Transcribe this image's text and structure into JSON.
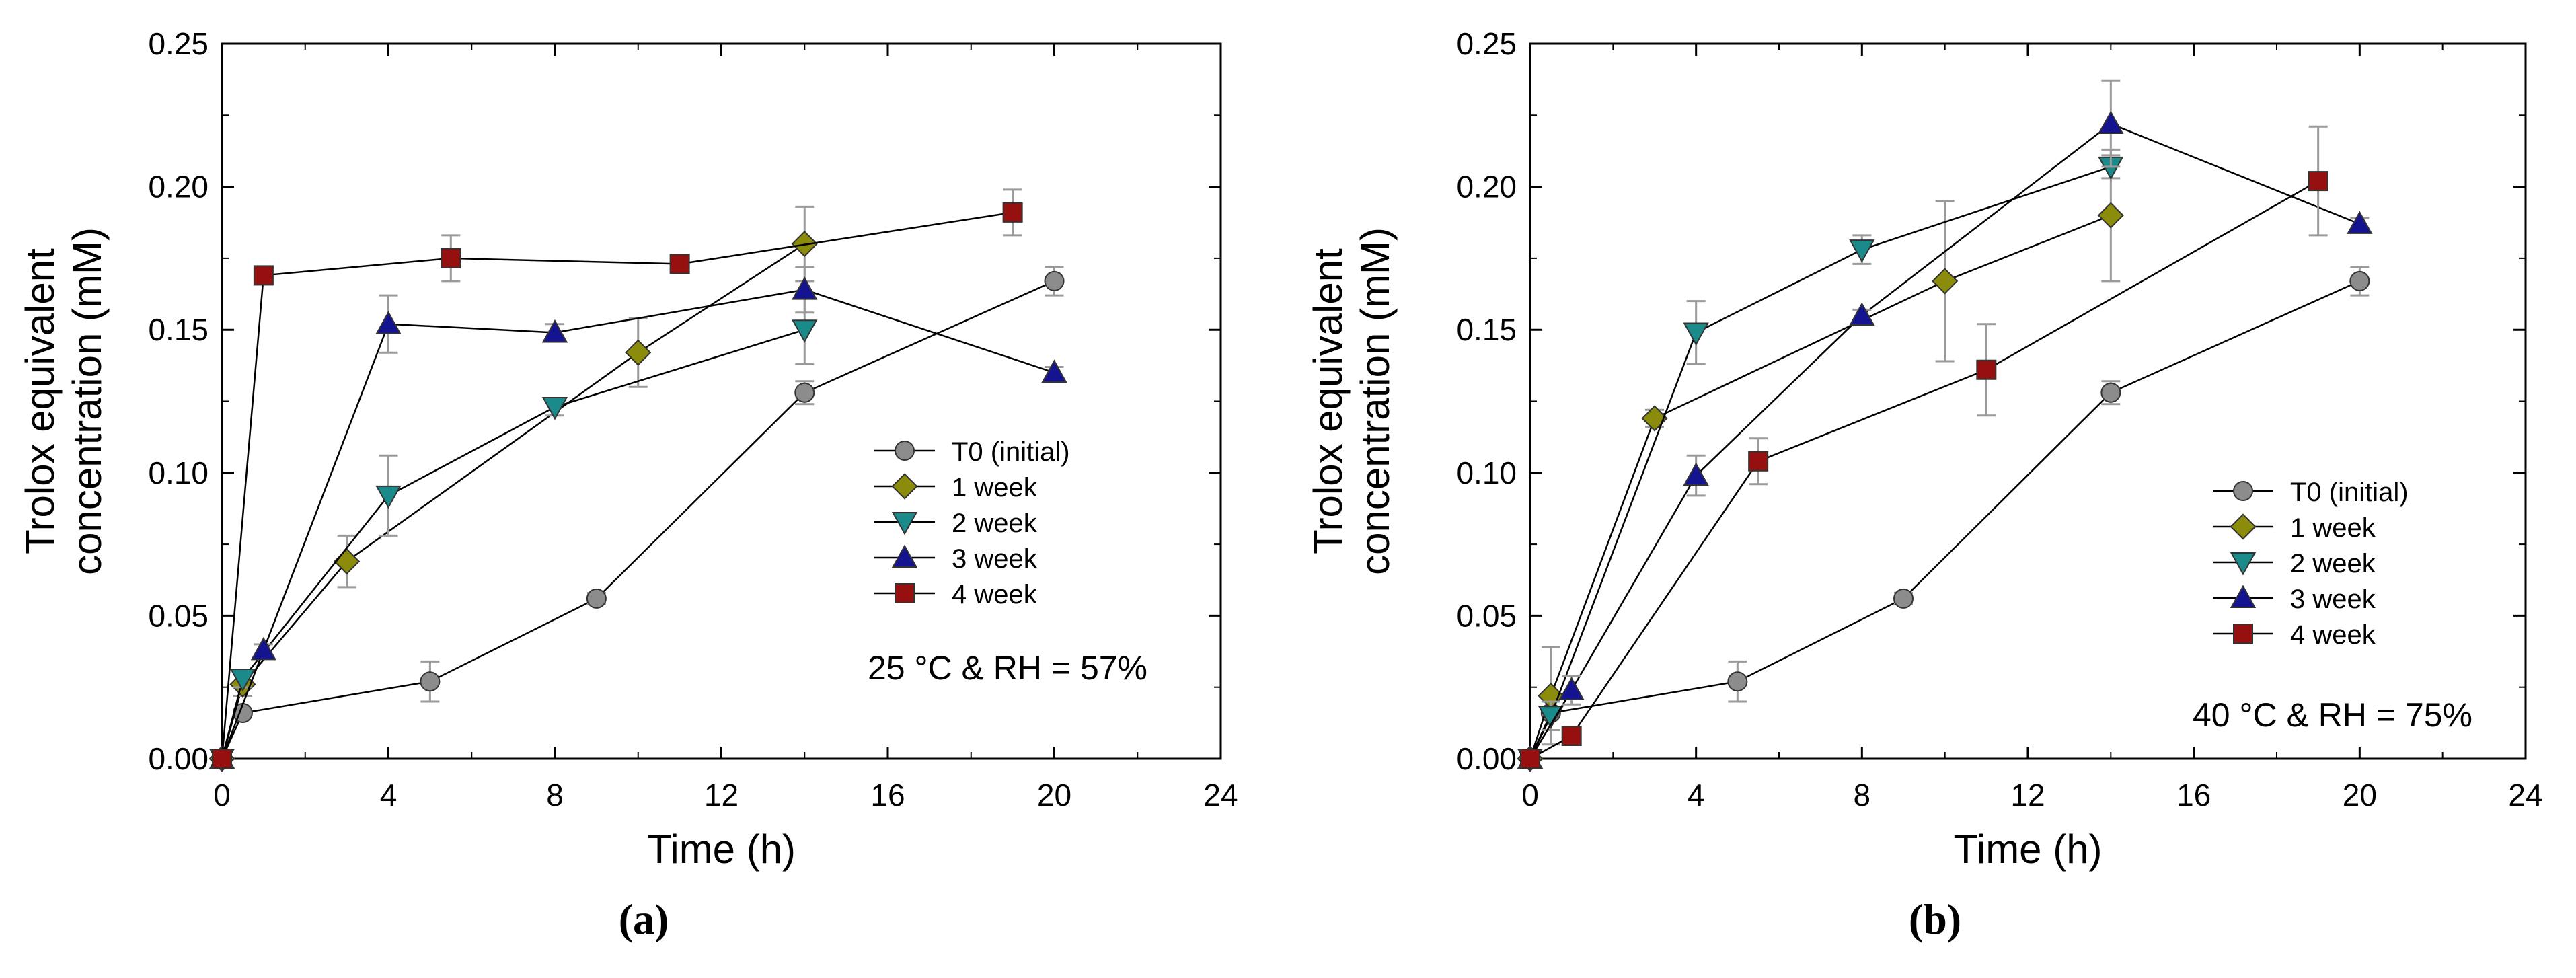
{
  "colors": {
    "T0 (initial)": "#8c8c8c",
    "1 week": "#8c8c0c",
    "2 week": "#1a8a8a",
    "3 week": "#141490",
    "4 week": "#961010",
    "error_bar": "#9a9a9a",
    "line": "#000000"
  },
  "chart_data": [
    {
      "type": "line",
      "panel_label": "(a)",
      "annotation": "25 °C & RH = 57%",
      "xlabel": "Time (h)",
      "ylabel": [
        "Trolox equivalent",
        "concentration (mM)"
      ],
      "xlim": [
        0,
        24
      ],
      "ylim": [
        0,
        0.25
      ],
      "xticks": [
        "0",
        "4",
        "8",
        "12",
        "16",
        "20",
        "24"
      ],
      "yticks": [
        "0.00",
        "0.05",
        "0.10",
        "0.15",
        "0.20",
        "0.25"
      ],
      "legend_position": "center-right",
      "series": [
        {
          "name": "T0 (initial)",
          "marker": "circle",
          "points": [
            [
              0,
              0
            ],
            [
              0.5,
              0.016
            ],
            [
              5,
              0.027
            ],
            [
              9,
              0.056
            ],
            [
              14,
              0.128
            ],
            [
              20,
              0.167
            ]
          ],
          "err": [
            0,
            0.001,
            0.007,
            0.002,
            0.004,
            0.005
          ]
        },
        {
          "name": "1 week",
          "marker": "diamond",
          "points": [
            [
              0,
              0
            ],
            [
              0.5,
              0.026
            ],
            [
              3,
              0.069
            ],
            [
              10,
              0.142
            ],
            [
              14,
              0.18
            ]
          ],
          "err": [
            0,
            0.004,
            0.009,
            0.012,
            0.013
          ]
        },
        {
          "name": "2 week",
          "marker": "triangle-down",
          "points": [
            [
              0,
              0
            ],
            [
              0.5,
              0.028
            ],
            [
              4,
              0.092
            ],
            [
              8,
              0.123
            ],
            [
              14,
              0.15
            ]
          ],
          "err": [
            0,
            0.003,
            0.014,
            0.003,
            0.012
          ]
        },
        {
          "name": "3 week",
          "marker": "triangle-up",
          "points": [
            [
              0,
              0
            ],
            [
              1,
              0.038
            ],
            [
              4,
              0.152
            ],
            [
              8,
              0.149
            ],
            [
              14,
              0.164
            ],
            [
              20,
              0.135
            ]
          ],
          "err": [
            0,
            0.002,
            0.01,
            0.003,
            0.008,
            0.002
          ]
        },
        {
          "name": "4 week",
          "marker": "square",
          "points": [
            [
              0,
              0
            ],
            [
              1,
              0.169
            ],
            [
              5.5,
              0.175
            ],
            [
              11,
              0.173
            ],
            [
              19,
              0.191
            ]
          ],
          "err": [
            0,
            0.002,
            0.008,
            0.002,
            0.008
          ]
        }
      ]
    },
    {
      "type": "line",
      "panel_label": "(b)",
      "annotation": "40 °C & RH = 75%",
      "xlabel": "Time (h)",
      "ylabel": [
        "Trolox equivalent",
        "concentration (mM)"
      ],
      "xlim": [
        0,
        24
      ],
      "ylim": [
        0,
        0.25
      ],
      "xticks": [
        "0",
        "4",
        "8",
        "12",
        "16",
        "20",
        "24"
      ],
      "yticks": [
        "0.00",
        "0.05",
        "0.10",
        "0.15",
        "0.20",
        "0.25"
      ],
      "legend_position": "lower-right",
      "series": [
        {
          "name": "T0 (initial)",
          "marker": "circle",
          "points": [
            [
              0,
              0
            ],
            [
              0.5,
              0.016
            ],
            [
              5,
              0.027
            ],
            [
              9,
              0.056
            ],
            [
              14,
              0.128
            ],
            [
              20,
              0.167
            ]
          ],
          "err": [
            0,
            0.001,
            0.007,
            0.002,
            0.004,
            0.005
          ]
        },
        {
          "name": "1 week",
          "marker": "diamond",
          "points": [
            [
              0,
              0
            ],
            [
              0.5,
              0.022
            ],
            [
              3,
              0.119
            ],
            [
              10,
              0.167
            ],
            [
              14,
              0.19
            ]
          ],
          "err": [
            0,
            0.017,
            0.003,
            0.028,
            0.023
          ]
        },
        {
          "name": "2 week",
          "marker": "triangle-down",
          "points": [
            [
              0,
              0
            ],
            [
              0.5,
              0.015
            ],
            [
              4,
              0.149
            ],
            [
              8,
              0.178
            ],
            [
              14,
              0.207
            ]
          ],
          "err": [
            0,
            0.005,
            0.011,
            0.005,
            0.004
          ]
        },
        {
          "name": "3 week",
          "marker": "triangle-up",
          "points": [
            [
              0,
              0
            ],
            [
              1,
              0.024
            ],
            [
              4,
              0.099
            ],
            [
              8,
              0.155
            ],
            [
              14,
              0.222
            ],
            [
              20,
              0.187
            ]
          ],
          "err": [
            0,
            0.005,
            0.007,
            0.002,
            0.015,
            0.002
          ]
        },
        {
          "name": "4 week",
          "marker": "square",
          "points": [
            [
              0,
              0
            ],
            [
              1,
              0.008
            ],
            [
              5.5,
              0.104
            ],
            [
              11,
              0.136
            ],
            [
              19,
              0.202
            ]
          ],
          "err": [
            0,
            0.002,
            0.008,
            0.016,
            0.019
          ]
        }
      ]
    }
  ]
}
